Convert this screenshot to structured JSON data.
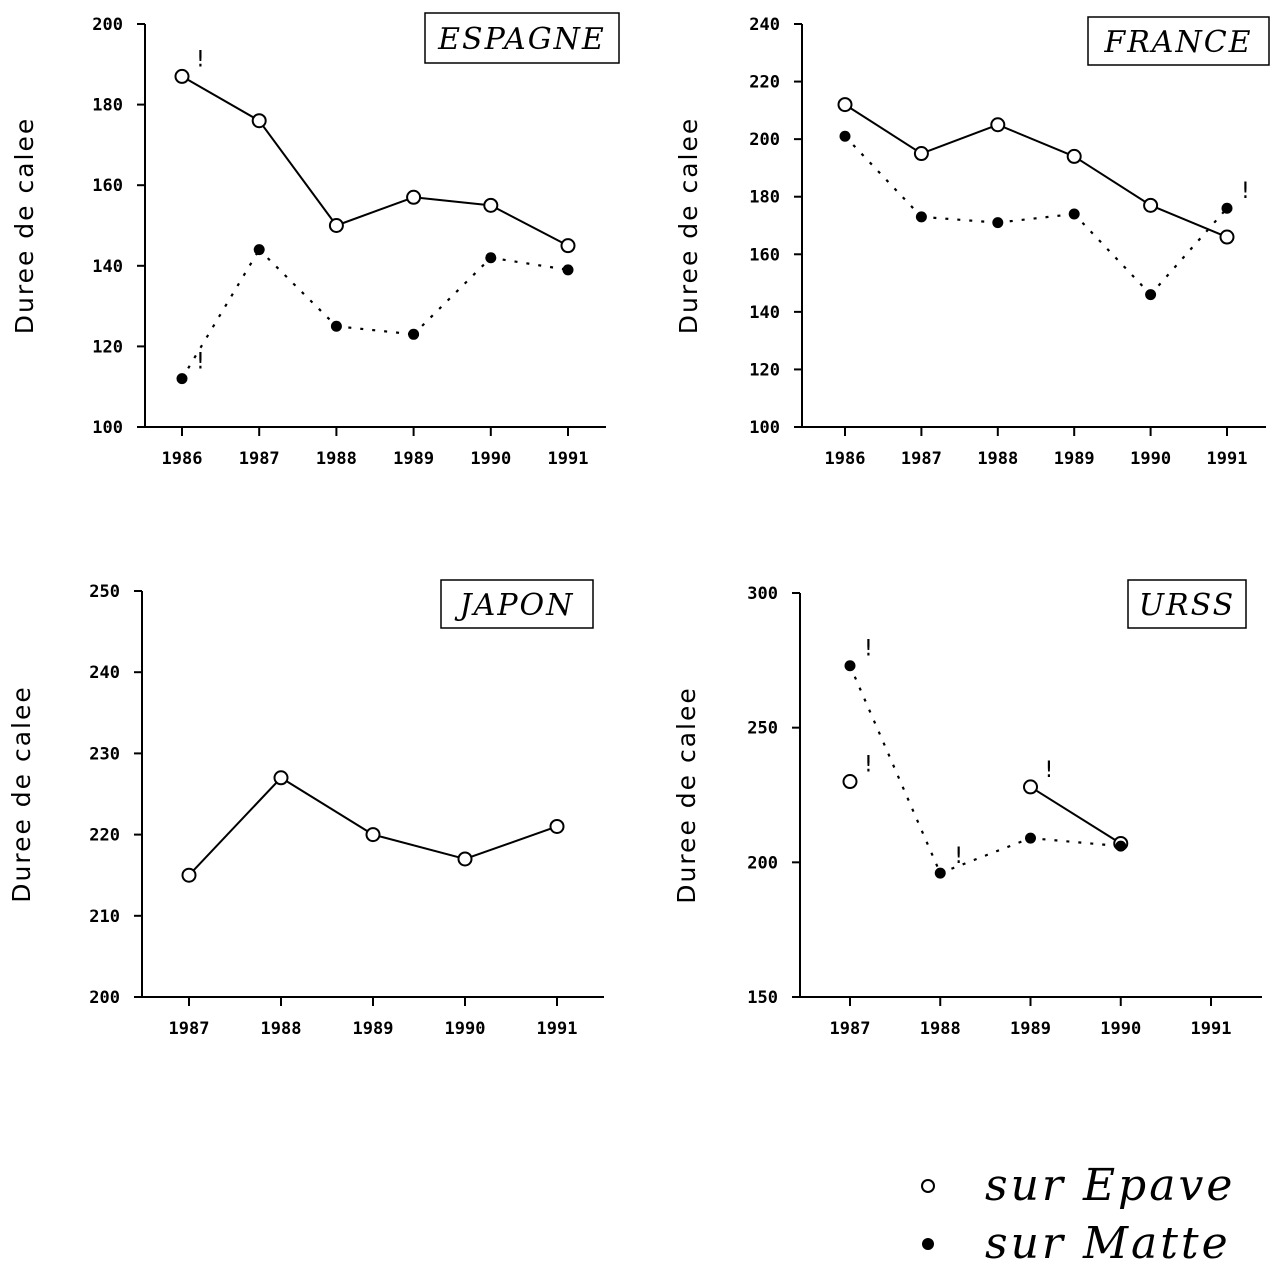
{
  "chart_data": [
    {
      "type": "line",
      "title": "ESPAGNE",
      "xlabel": "",
      "ylabel": "Duree de calee",
      "ylim": [
        100,
        200
      ],
      "yticks": [
        100,
        120,
        140,
        160,
        180,
        200
      ],
      "x": [
        1986,
        1987,
        1988,
        1989,
        1990,
        1991
      ],
      "series": [
        {
          "name": "sur Epave",
          "marker": "open-circle",
          "line": "solid",
          "values": [
            187,
            176,
            150,
            157,
            155,
            145
          ],
          "flags": [
            1986
          ]
        },
        {
          "name": "sur Matte",
          "marker": "filled-circle",
          "line": "dotted",
          "values": [
            112,
            144,
            125,
            123,
            142,
            139
          ],
          "flags": [
            1986
          ]
        }
      ]
    },
    {
      "type": "line",
      "title": "FRANCE",
      "xlabel": "",
      "ylabel": "Duree de calee",
      "ylim": [
        100,
        240
      ],
      "yticks": [
        100,
        120,
        140,
        160,
        180,
        200,
        220,
        240
      ],
      "x": [
        1986,
        1987,
        1988,
        1989,
        1990,
        1991
      ],
      "series": [
        {
          "name": "sur Epave",
          "marker": "open-circle",
          "line": "solid",
          "values": [
            212,
            195,
            205,
            194,
            177,
            166
          ],
          "flags": []
        },
        {
          "name": "sur Matte",
          "marker": "filled-circle",
          "line": "dotted",
          "values": [
            201,
            173,
            171,
            174,
            146,
            176
          ],
          "flags": [
            1991
          ]
        }
      ]
    },
    {
      "type": "line",
      "title": "JAPON",
      "xlabel": "",
      "ylabel": "Duree de calee",
      "ylim": [
        200,
        250
      ],
      "yticks": [
        200,
        210,
        220,
        230,
        240,
        250
      ],
      "x": [
        1987,
        1988,
        1989,
        1990,
        1991
      ],
      "series": [
        {
          "name": "sur Epave",
          "marker": "open-circle",
          "line": "solid",
          "values": [
            215,
            227,
            220,
            217,
            221
          ],
          "flags": []
        }
      ]
    },
    {
      "type": "line",
      "title": "URSS",
      "xlabel": "",
      "ylabel": "Duree de calee",
      "ylim": [
        150,
        300
      ],
      "yticks": [
        150,
        200,
        250,
        300
      ],
      "x": [
        1987,
        1988,
        1989,
        1990,
        1991
      ],
      "series": [
        {
          "name": "sur Epave",
          "marker": "open-circle",
          "line": "solid",
          "values": [
            230,
            null,
            228,
            207,
            null
          ],
          "flags": [
            1987,
            1989
          ]
        },
        {
          "name": "sur Matte",
          "marker": "filled-circle",
          "line": "dotted",
          "values": [
            273,
            196,
            209,
            206,
            null
          ],
          "flags": [
            1987,
            1988
          ]
        }
      ]
    }
  ],
  "legend": {
    "placement": "bottom-right",
    "items": [
      {
        "label": "sur Epave",
        "marker": "open-circle"
      },
      {
        "label": "sur Matte",
        "marker": "filled-circle"
      }
    ]
  },
  "flag_symbol": "!"
}
